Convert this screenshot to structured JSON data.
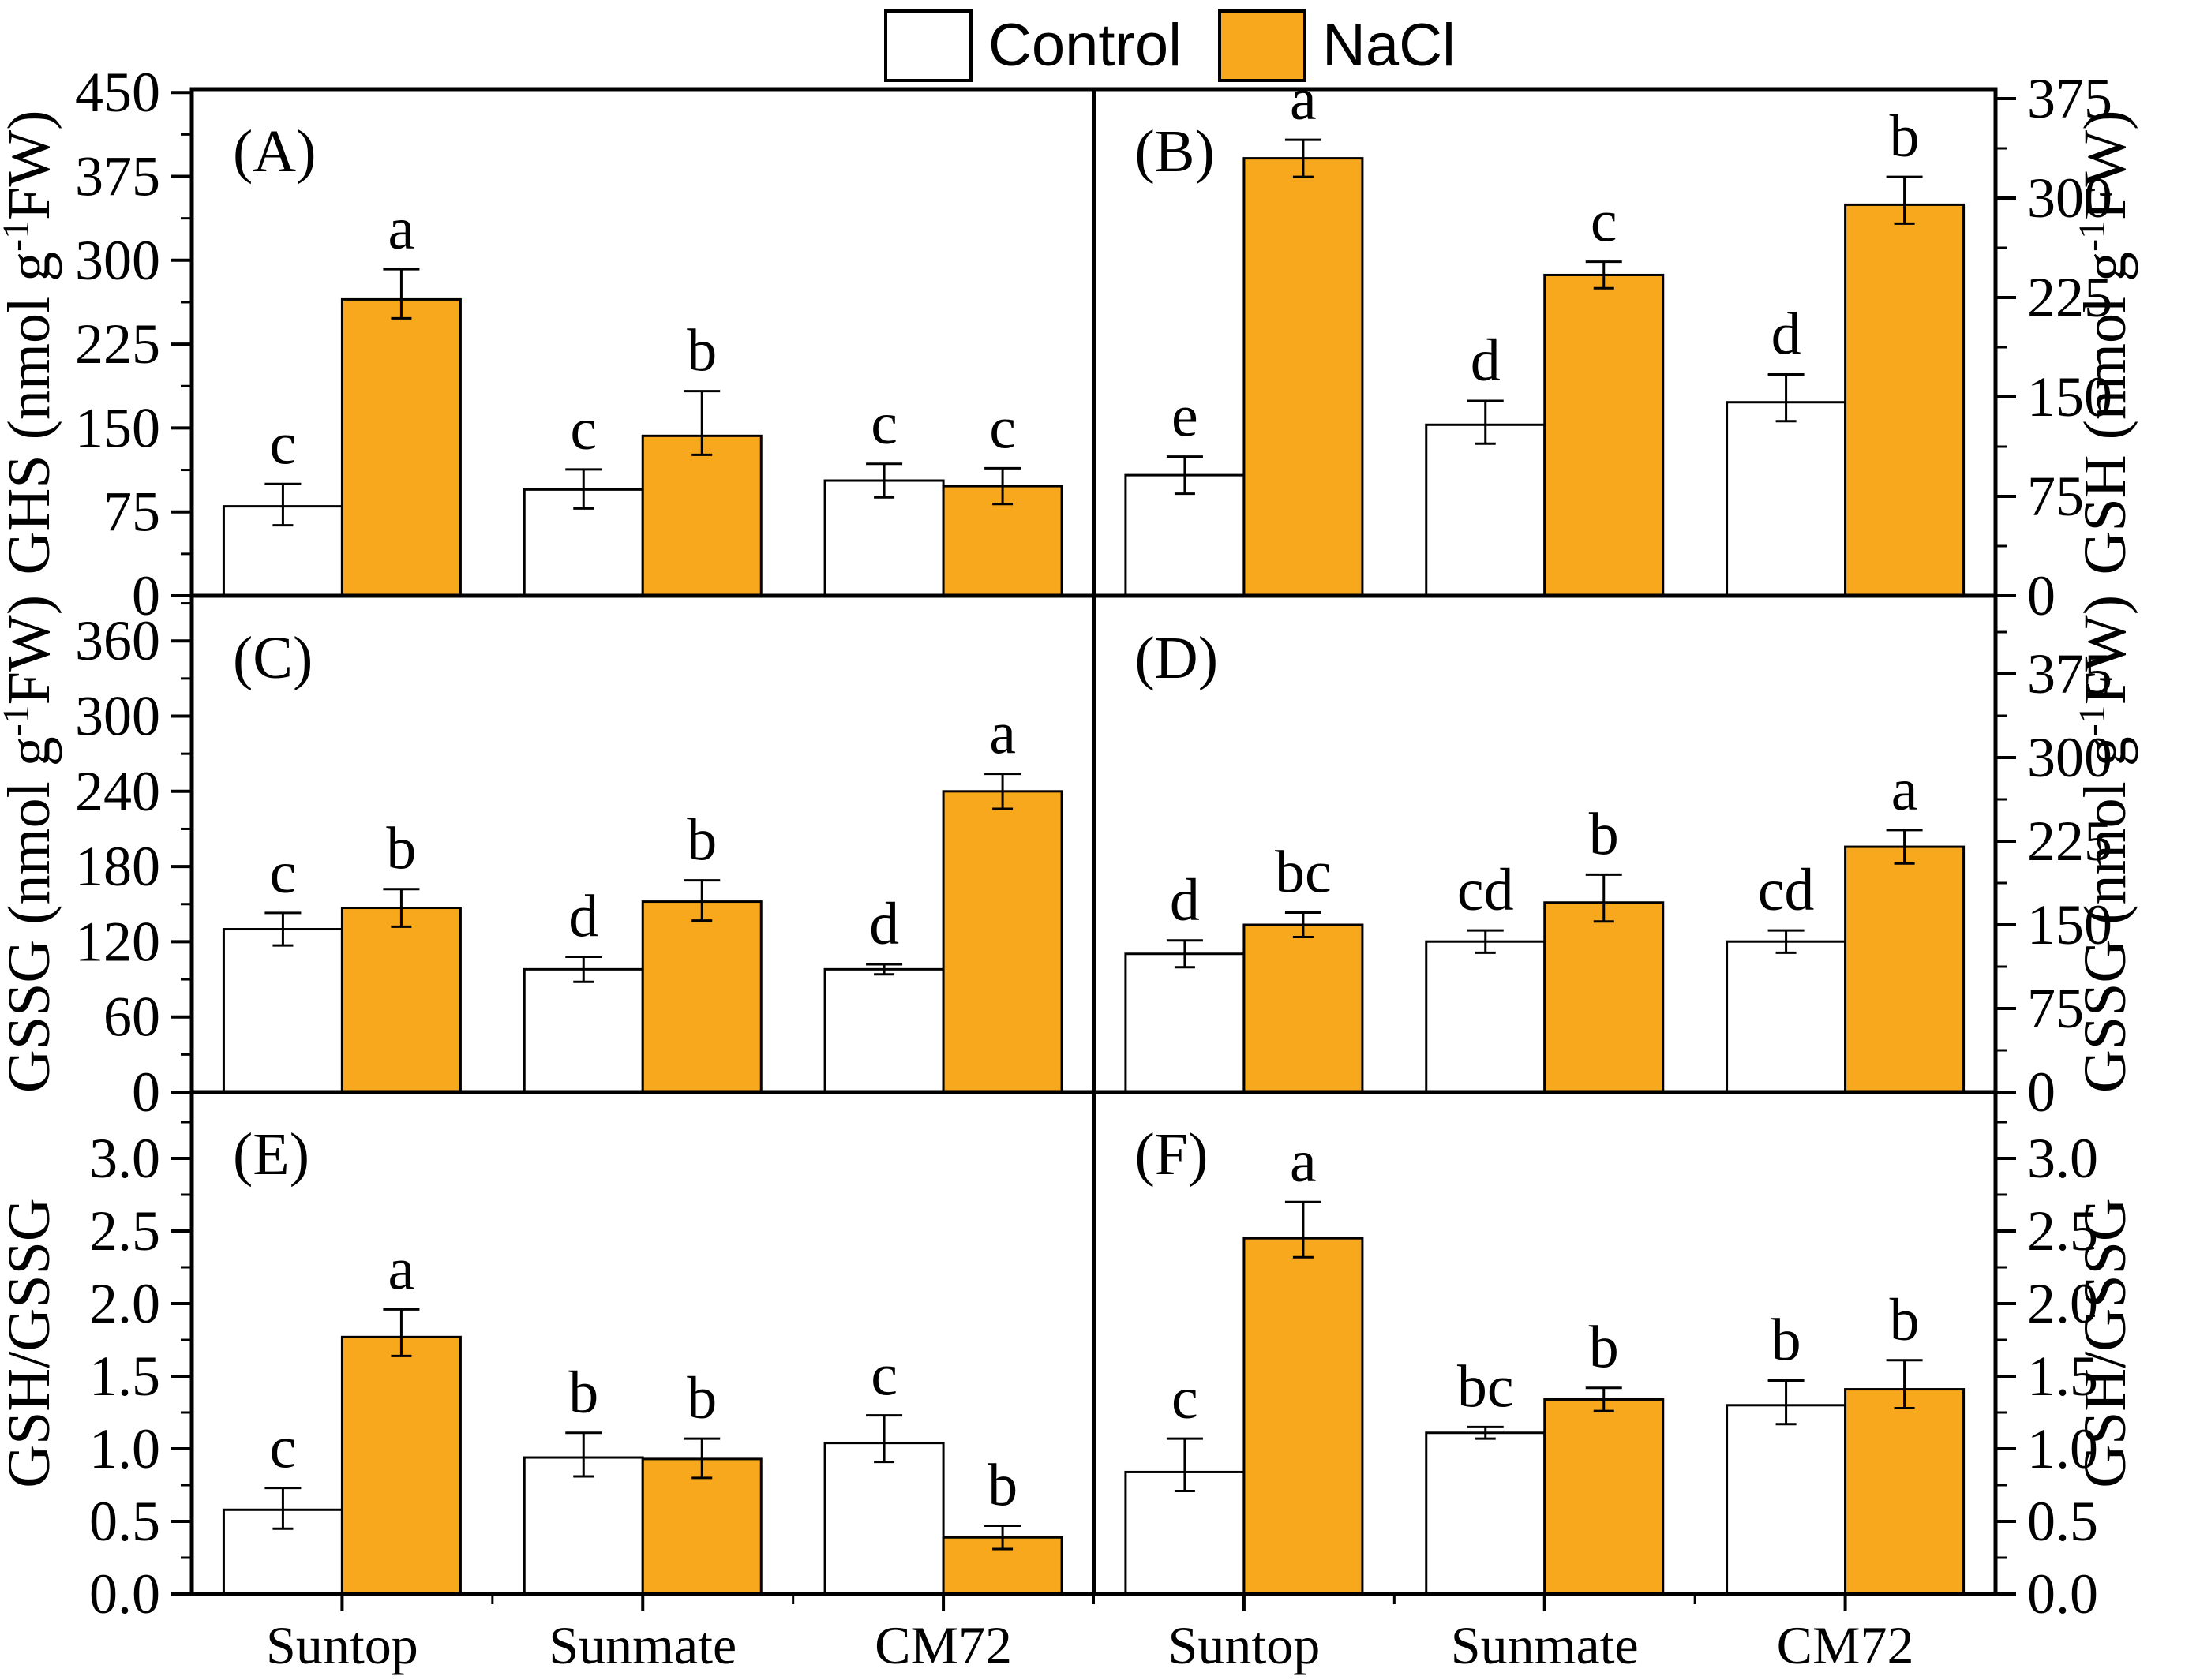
{
  "legend": {
    "control_label": "Control",
    "nacl_label": "NaCl",
    "control_color": "#ffffff",
    "nacl_color": "#F7A81C"
  },
  "categories": [
    "Suntop",
    "Sunmate",
    "CM72"
  ],
  "chart_data": [
    {
      "id": "A",
      "type": "bar",
      "panel_label": "(A)",
      "axis_side": "left",
      "ylabel": {
        "pre": "GHS (nmol g",
        "sup": "-1",
        "post": "FW)"
      },
      "ylim": [
        0,
        450
      ],
      "ytick_step": 75,
      "yticks": [
        "0",
        "75",
        "150",
        "225",
        "300",
        "375",
        "450"
      ],
      "categories": [
        "Suntop",
        "Sunmate",
        "CM72"
      ],
      "series": [
        {
          "name": "Control",
          "values": [
            80,
            95,
            103
          ],
          "errors": [
            20,
            18,
            15
          ],
          "letters": [
            "c",
            "c",
            "c"
          ]
        },
        {
          "name": "NaCl",
          "values": [
            265,
            143,
            98
          ],
          "errors": [
            27,
            40,
            16
          ],
          "letters": [
            "a",
            "b",
            "c"
          ]
        }
      ]
    },
    {
      "id": "B",
      "type": "bar",
      "panel_label": "(B)",
      "axis_side": "right",
      "ylabel": {
        "pre": "GSH (nmol g",
        "sup": "-1",
        "post": "FW)"
      },
      "ylim": [
        0,
        375
      ],
      "ytick_step": 75,
      "yticks": [
        "0",
        "75",
        "150",
        "225",
        "300",
        "375"
      ],
      "categories": [
        "Suntop",
        "Sunmate",
        "CM72"
      ],
      "series": [
        {
          "name": "Control",
          "values": [
            91,
            129,
            146
          ],
          "errors": [
            14,
            18,
            21
          ],
          "letters": [
            "e",
            "d",
            "d"
          ]
        },
        {
          "name": "NaCl",
          "values": [
            330,
            242,
            295
          ],
          "errors": [
            14,
            10,
            21
          ],
          "letters": [
            "a",
            "c",
            "b"
          ]
        }
      ]
    },
    {
      "id": "C",
      "type": "bar",
      "panel_label": "(C)",
      "axis_side": "left",
      "ylabel": {
        "pre": "GSSG (nmol g",
        "sup": "-1",
        "post": "FW)"
      },
      "ylim": [
        0,
        360
      ],
      "ytick_step": 60,
      "yticks": [
        "0",
        "60",
        "120",
        "180",
        "240",
        "300",
        "360"
      ],
      "categories": [
        "Suntop",
        "Sunmate",
        "CM72"
      ],
      "series": [
        {
          "name": "Control",
          "values": [
            130,
            98,
            98
          ],
          "errors": [
            13,
            10,
            4
          ],
          "letters": [
            "c",
            "d",
            "d"
          ]
        },
        {
          "name": "NaCl",
          "values": [
            147,
            152,
            240
          ],
          "errors": [
            15,
            17,
            14
          ],
          "letters": [
            "b",
            "b",
            "a"
          ]
        }
      ]
    },
    {
      "id": "D",
      "type": "bar",
      "panel_label": "(D)",
      "axis_side": "right",
      "ylabel": {
        "pre": "GSSG (nmol g",
        "sup": "-1",
        "post": "FW)"
      },
      "ylim": [
        0,
        375
      ],
      "ytick_step": 75,
      "yticks": [
        "0",
        "75",
        "150",
        "225",
        "300",
        "375"
      ],
      "categories": [
        "Suntop",
        "Sunmate",
        "CM72"
      ],
      "series": [
        {
          "name": "Control",
          "values": [
            124,
            135,
            135
          ],
          "errors": [
            12,
            10,
            10
          ],
          "letters": [
            "d",
            "cd",
            "cd"
          ]
        },
        {
          "name": "NaCl",
          "values": [
            150,
            170,
            220
          ],
          "errors": [
            11,
            25,
            15
          ],
          "letters": [
            "bc",
            "b",
            "a"
          ]
        }
      ]
    },
    {
      "id": "E",
      "type": "bar",
      "panel_label": "(E)",
      "axis_side": "left",
      "ylabel": {
        "pre": "GSH/GSSG",
        "sup": "",
        "post": ""
      },
      "ylim": [
        0,
        3.0
      ],
      "ytick_step": 0.5,
      "yticks": [
        "0.0",
        "0.5",
        "1.0",
        "1.5",
        "2.0",
        "2.5",
        "3.0"
      ],
      "categories": [
        "Suntop",
        "Sunmate",
        "CM72"
      ],
      "series": [
        {
          "name": "Control",
          "values": [
            0.58,
            0.94,
            1.04
          ],
          "errors": [
            0.15,
            0.17,
            0.19
          ],
          "letters": [
            "c",
            "b",
            "c"
          ]
        },
        {
          "name": "NaCl",
          "values": [
            1.77,
            0.93,
            0.39
          ],
          "errors": [
            0.19,
            0.14,
            0.08
          ],
          "letters": [
            "a",
            "b",
            "b"
          ]
        }
      ]
    },
    {
      "id": "F",
      "type": "bar",
      "panel_label": "(F)",
      "axis_side": "right",
      "ylabel": {
        "pre": "GSH/GSSG",
        "sup": "",
        "post": ""
      },
      "ylim": [
        0,
        3.0
      ],
      "ytick_step": 0.5,
      "yticks": [
        "0.0",
        "0.5",
        "1.0",
        "1.5",
        "2.0",
        "2.5",
        "3.0"
      ],
      "categories": [
        "Suntop",
        "Sunmate",
        "CM72"
      ],
      "series": [
        {
          "name": "Control",
          "values": [
            0.84,
            1.11,
            1.3
          ],
          "errors": [
            0.23,
            0.04,
            0.17
          ],
          "letters": [
            "c",
            "bc",
            "b"
          ]
        },
        {
          "name": "NaCl",
          "values": [
            2.45,
            1.34,
            1.41
          ],
          "errors": [
            0.25,
            0.08,
            0.2
          ],
          "letters": [
            "a",
            "b",
            "b"
          ]
        }
      ]
    }
  ]
}
